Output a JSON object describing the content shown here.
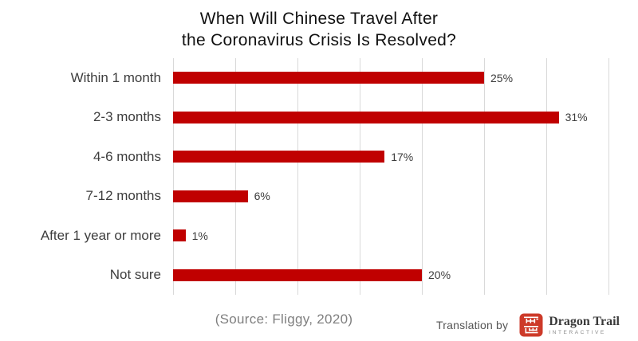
{
  "title": {
    "line1": "When Will Chinese Travel After",
    "line2": "the Coronavirus Crisis Is Resolved?"
  },
  "chart_data": {
    "type": "bar",
    "orientation": "horizontal",
    "title": "When Will Chinese Travel After the Coronavirus Crisis Is Resolved?",
    "categories": [
      "Within 1 month",
      "2-3 months",
      "4-6 months",
      "7-12 months",
      "After 1 year or more",
      "Not sure"
    ],
    "values": [
      25,
      31,
      17,
      6,
      1,
      20
    ],
    "value_labels": [
      "25%",
      "31%",
      "17%",
      "6%",
      "1%",
      "20%"
    ],
    "xlabel": "",
    "ylabel": "",
    "xlim": [
      0,
      35
    ],
    "grid_step": 5,
    "grid": "vertical-only",
    "legend": "none",
    "bar_color": "#c00000",
    "gridline_color": "#d9d9d9"
  },
  "footer": {
    "source": "(Source: Fliggy, 2020)",
    "translation_label": "Translation by",
    "logo": {
      "name": "Dragon Trail",
      "subtext": "INTERACTIVE",
      "seal_icon": "dragon-trail-seal-icon",
      "seal_color": "#cd3a29"
    }
  },
  "colors": {
    "background": "#ffffff",
    "title_text": "#111111",
    "category_text": "#3d3d3d",
    "value_text": "#3d3d3d",
    "source_text": "#7f7f7f",
    "credit_text": "#565656"
  }
}
